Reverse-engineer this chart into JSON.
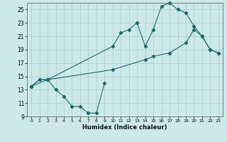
{
  "xlabel": "Humidex (Indice chaleur)",
  "bg_color": "#cce8e8",
  "grid_color": "#aacccc",
  "line_color": "#1a6b6b",
  "xlim": [
    -0.5,
    23.5
  ],
  "ylim": [
    9,
    26
  ],
  "yticks": [
    9,
    11,
    13,
    15,
    17,
    19,
    21,
    23,
    25
  ],
  "xticks": [
    0,
    1,
    2,
    3,
    4,
    5,
    6,
    7,
    8,
    9,
    10,
    11,
    12,
    13,
    14,
    15,
    16,
    17,
    18,
    19,
    20,
    21,
    22,
    23
  ],
  "line1_x": [
    0,
    1,
    2,
    3,
    4,
    5,
    6,
    7,
    8,
    9
  ],
  "line1_y": [
    13.5,
    14.5,
    14.5,
    13.0,
    12.0,
    10.5,
    10.5,
    9.5,
    9.5,
    14.0
  ],
  "line2_x": [
    0,
    1,
    2,
    10,
    11,
    12,
    13,
    14,
    15,
    16,
    17,
    18,
    19,
    20,
    21,
    22,
    23
  ],
  "line2_y": [
    13.5,
    14.5,
    14.5,
    19.5,
    21.5,
    22.0,
    23.0,
    19.5,
    22.0,
    25.5,
    26.0,
    25.0,
    24.5,
    22.5,
    21.0,
    19.0,
    18.5
  ],
  "line3_x": [
    0,
    2,
    10,
    14,
    15,
    17,
    19,
    20,
    21,
    22,
    23
  ],
  "line3_y": [
    13.5,
    14.5,
    16.0,
    17.5,
    18.0,
    18.5,
    20.0,
    22.0,
    21.0,
    19.0,
    18.5
  ]
}
